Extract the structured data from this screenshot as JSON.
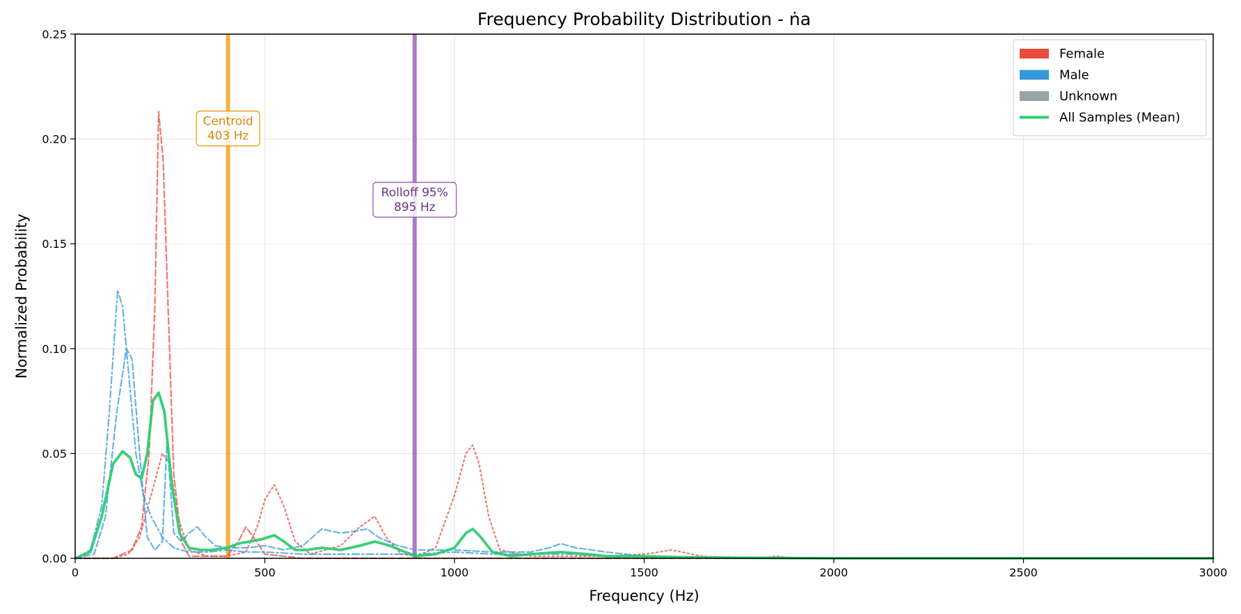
{
  "chart_data": {
    "type": "line",
    "title": "Frequency Probability Distribution - ṅa",
    "xlabel": "Frequency (Hz)",
    "ylabel": "Normalized Probability",
    "xlim": [
      0,
      3000
    ],
    "ylim": [
      0,
      0.25
    ],
    "xticks": [
      0,
      500,
      1000,
      1500,
      2000,
      2500,
      3000
    ],
    "xtick_labels": [
      "0",
      "500",
      "1000",
      "1500",
      "2000",
      "2500",
      "3000"
    ],
    "yticks": [
      0,
      0.05,
      0.1,
      0.15,
      0.2,
      0.25
    ],
    "ytick_labels": [
      "0.00",
      "0.05",
      "0.10",
      "0.15",
      "0.20",
      "0.25"
    ],
    "grid": true,
    "legend_position": "top-right",
    "legend": [
      {
        "label": "Female",
        "kind": "patch",
        "color": "#e74c3c"
      },
      {
        "label": "Male",
        "kind": "patch",
        "color": "#3498db"
      },
      {
        "label": "Unknown",
        "kind": "patch",
        "color": "#95a5a6"
      },
      {
        "label": "All Samples (Mean)",
        "kind": "line",
        "color": "#2ecc71"
      }
    ],
    "vlines": [
      {
        "x": 403,
        "color": "#f39c12",
        "label_lines": [
          "Centroid",
          "403 Hz"
        ],
        "label_y": 0.205,
        "text_color": "#d68910"
      },
      {
        "x": 895,
        "color": "#9b59b6",
        "label_lines": [
          "Rolloff 95%",
          "895 Hz"
        ],
        "label_y": 0.171,
        "text_color": "#6c3483"
      }
    ],
    "series": [
      {
        "group": "Female",
        "style": "dashed",
        "color": "#e74c3c",
        "width": 2.2,
        "opacity": 0.75,
        "x": [
          0,
          100,
          150,
          175,
          195,
          210,
          220,
          232,
          245,
          260,
          280,
          300,
          400,
          430,
          450,
          470,
          500,
          600,
          1000,
          1500,
          3000
        ],
        "y": [
          0,
          0,
          0.004,
          0.015,
          0.05,
          0.12,
          0.213,
          0.19,
          0.12,
          0.04,
          0.008,
          0.001,
          0.001,
          0.008,
          0.015,
          0.01,
          0.002,
          0,
          0,
          0,
          0
        ]
      },
      {
        "group": "Female",
        "style": "dotted",
        "color": "#e74c3c",
        "width": 2.2,
        "opacity": 0.75,
        "x": [
          0,
          100,
          140,
          170,
          200,
          230,
          250,
          270,
          300,
          350,
          400,
          450,
          480,
          500,
          525,
          550,
          580,
          620,
          700,
          750,
          790,
          820,
          860,
          900,
          950,
          1000,
          1030,
          1048,
          1065,
          1090,
          1120,
          1200,
          1400,
          1500,
          1540,
          1570,
          1600,
          1650,
          1800,
          1850,
          1900,
          2100,
          3000
        ],
        "y": [
          0,
          0,
          0.002,
          0.01,
          0.03,
          0.05,
          0.045,
          0.02,
          0.004,
          0.001,
          0.001,
          0.003,
          0.015,
          0.028,
          0.035,
          0.025,
          0.008,
          0.002,
          0.006,
          0.015,
          0.02,
          0.01,
          0.002,
          0.001,
          0.005,
          0.03,
          0.05,
          0.054,
          0.045,
          0.02,
          0.004,
          0.001,
          0.001,
          0.002,
          0.003,
          0.004,
          0.003,
          0.001,
          0,
          0.001,
          0,
          0,
          0
        ]
      },
      {
        "group": "Male",
        "style": "dashdot",
        "color": "#3498db",
        "width": 2.2,
        "opacity": 0.75,
        "x": [
          0,
          40,
          70,
          90,
          112,
          125,
          140,
          160,
          180,
          200,
          230,
          260,
          300,
          350,
          400,
          450,
          500,
          600,
          700,
          800,
          900,
          1000,
          1100,
          1200,
          1300,
          1400,
          1500,
          1700,
          2000,
          3000
        ],
        "y": [
          0,
          0.004,
          0.025,
          0.07,
          0.128,
          0.12,
          0.09,
          0.05,
          0.03,
          0.02,
          0.01,
          0.005,
          0.003,
          0.003,
          0.004,
          0.003,
          0.003,
          0.002,
          0.002,
          0.002,
          0.002,
          0.003,
          0.002,
          0.002,
          0.002,
          0.001,
          0.001,
          0.0005,
          0,
          0
        ]
      },
      {
        "group": "Male",
        "style": "dashed",
        "color": "#3498db",
        "width": 2.2,
        "opacity": 0.75,
        "x": [
          0,
          50,
          80,
          110,
          135,
          150,
          170,
          190,
          210,
          230,
          242,
          260,
          280,
          300,
          322,
          345,
          370,
          400,
          450,
          500,
          550,
          600,
          650,
          700,
          740,
          770,
          800,
          850,
          900,
          1000,
          1100,
          1200,
          1250,
          1280,
          1320,
          1400,
          1500,
          1700,
          2000,
          3000
        ],
        "y": [
          0,
          0.002,
          0.02,
          0.07,
          0.1,
          0.095,
          0.05,
          0.01,
          0.004,
          0.008,
          0.056,
          0.012,
          0.008,
          0.012,
          0.015,
          0.01,
          0.006,
          0.005,
          0.005,
          0.006,
          0.004,
          0.006,
          0.014,
          0.012,
          0.013,
          0.014,
          0.01,
          0.006,
          0.004,
          0.004,
          0.003,
          0.003,
          0.005,
          0.007,
          0.005,
          0.003,
          0.001,
          0.0005,
          0,
          0
        ]
      },
      {
        "group": "All Samples (Mean)",
        "style": "solid",
        "color": "#2ecc71",
        "width": 3.8,
        "opacity": 0.95,
        "x": [
          0,
          40,
          70,
          100,
          125,
          145,
          160,
          175,
          190,
          205,
          220,
          235,
          255,
          275,
          300,
          330,
          360,
          400,
          430,
          460,
          490,
          525,
          550,
          580,
          610,
          650,
          700,
          750,
          790,
          830,
          870,
          900,
          950,
          1000,
          1030,
          1048,
          1070,
          1100,
          1150,
          1200,
          1280,
          1350,
          1400,
          1500,
          1600,
          1800,
          2000,
          3000
        ],
        "y": [
          0,
          0.003,
          0.02,
          0.045,
          0.051,
          0.048,
          0.04,
          0.038,
          0.05,
          0.075,
          0.079,
          0.07,
          0.035,
          0.012,
          0.005,
          0.004,
          0.004,
          0.005,
          0.007,
          0.008,
          0.009,
          0.011,
          0.008,
          0.004,
          0.004,
          0.005,
          0.004,
          0.006,
          0.008,
          0.006,
          0.003,
          0.001,
          0.002,
          0.005,
          0.012,
          0.014,
          0.01,
          0.003,
          0.001,
          0.002,
          0.003,
          0.002,
          0.001,
          0.001,
          0.0005,
          0.0002,
          0,
          0
        ]
      }
    ]
  }
}
